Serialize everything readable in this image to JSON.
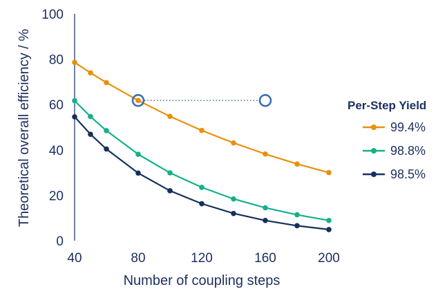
{
  "chart_data": {
    "type": "line",
    "xlabel": "Number of coupling steps",
    "ylabel": "Theoretical overall efficiency / %",
    "xlim": [
      40,
      200
    ],
    "ylim": [
      0,
      100
    ],
    "xticks": [
      40,
      80,
      120,
      160,
      200
    ],
    "yticks": [
      0,
      20,
      40,
      60,
      80,
      100
    ],
    "grid": false,
    "legend": {
      "title": "Per-Step Yield",
      "placement": "right"
    },
    "series": [
      {
        "name": "99.4%",
        "color": "#e8900c",
        "x": [
          40,
          50,
          60,
          80,
          100,
          120,
          140,
          160,
          180,
          200
        ],
        "y": [
          78.6,
          74.0,
          69.7,
          61.8,
          54.8,
          48.6,
          43.1,
          38.2,
          33.8,
          30.0
        ]
      },
      {
        "name": "98.8%",
        "color": "#14b08a",
        "x": [
          40,
          50,
          60,
          80,
          100,
          120,
          140,
          160,
          180,
          200
        ],
        "y": [
          61.7,
          54.7,
          48.5,
          38.1,
          29.9,
          23.5,
          18.4,
          14.5,
          11.4,
          8.9
        ]
      },
      {
        "name": "98.5%",
        "color": "#14305e",
        "x": [
          40,
          50,
          60,
          80,
          100,
          120,
          140,
          160,
          180,
          200
        ],
        "y": [
          54.6,
          46.9,
          40.4,
          29.8,
          22.0,
          16.3,
          12.0,
          8.9,
          6.6,
          4.9
        ]
      }
    ],
    "annotation": {
      "type": "dotted-connector",
      "color": "#3d6fb3",
      "from": {
        "x": 80,
        "y": 61.8
      },
      "to": {
        "x": 160,
        "y": 61.8
      }
    }
  }
}
